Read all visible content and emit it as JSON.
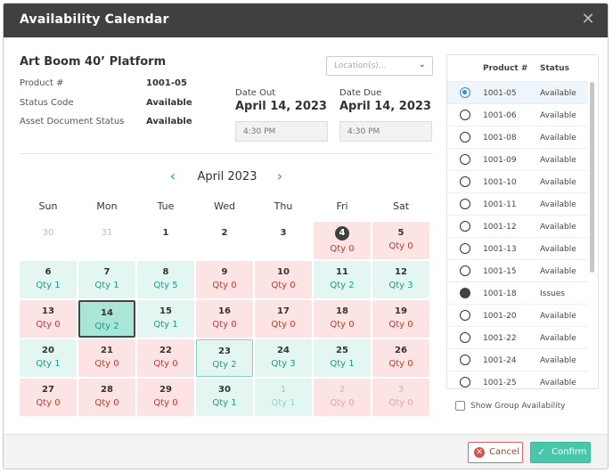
{
  "dialog": {
    "title": "Availability Calendar",
    "close_glyph": "✕"
  },
  "product": {
    "name": "Art Boom 40’ Platform",
    "fields": [
      {
        "label": "Product #",
        "value": "1001-05"
      },
      {
        "label": "Status Code",
        "value": "Available"
      },
      {
        "label": "Asset Document Status",
        "value": "Available"
      }
    ]
  },
  "location": {
    "placeholder": "Location(s)..."
  },
  "date_out": {
    "label": "Date Out",
    "value": "April 14, 2023",
    "time": "4:30 PM"
  },
  "date_due": {
    "label": "Date Due",
    "value": "April 14, 2023",
    "time": "4:30 PM"
  },
  "calendar": {
    "month_label": "April 2023",
    "prev_glyph": "‹",
    "next_glyph": "›",
    "weekdays": [
      "Sun",
      "Mon",
      "Tue",
      "Wed",
      "Thu",
      "Fri",
      "Sat"
    ],
    "weeks": [
      [
        {
          "day": "30",
          "qty": "",
          "state": "none",
          "out": true
        },
        {
          "day": "31",
          "qty": "",
          "state": "none",
          "out": true
        },
        {
          "day": "1",
          "qty": "",
          "state": "none"
        },
        {
          "day": "2",
          "qty": "",
          "state": "none"
        },
        {
          "day": "3",
          "qty": "",
          "state": "none"
        },
        {
          "day": "4",
          "qty": "Qty 0",
          "state": "red",
          "today": true
        },
        {
          "day": "5",
          "qty": "Qty 0",
          "state": "red"
        }
      ],
      [
        {
          "day": "6",
          "qty": "Qty 1",
          "state": "green"
        },
        {
          "day": "7",
          "qty": "Qty 1",
          "state": "green"
        },
        {
          "day": "8",
          "qty": "Qty 5",
          "state": "green"
        },
        {
          "day": "9",
          "qty": "Qty 0",
          "state": "red"
        },
        {
          "day": "10",
          "qty": "Qty 0",
          "state": "red"
        },
        {
          "day": "11",
          "qty": "Qty 2",
          "state": "green"
        },
        {
          "day": "12",
          "qty": "Qty 3",
          "state": "green"
        }
      ],
      [
        {
          "day": "13",
          "qty": "Qty 0",
          "state": "red"
        },
        {
          "day": "14",
          "qty": "Qty 2",
          "state": "green",
          "selected": true
        },
        {
          "day": "15",
          "qty": "Qty 1",
          "state": "green"
        },
        {
          "day": "16",
          "qty": "Qty 0",
          "state": "red"
        },
        {
          "day": "17",
          "qty": "Qty 0",
          "state": "red"
        },
        {
          "day": "18",
          "qty": "Qty 0",
          "state": "red"
        },
        {
          "day": "19",
          "qty": "Qty 0",
          "state": "red"
        }
      ],
      [
        {
          "day": "20",
          "qty": "Qty 1",
          "state": "green"
        },
        {
          "day": "21",
          "qty": "Qty 0",
          "state": "red"
        },
        {
          "day": "22",
          "qty": "Qty 0",
          "state": "red"
        },
        {
          "day": "23",
          "qty": "Qty 2",
          "state": "green",
          "hover": true
        },
        {
          "day": "24",
          "qty": "Qty 3",
          "state": "green"
        },
        {
          "day": "25",
          "qty": "Qty 1",
          "state": "green"
        },
        {
          "day": "26",
          "qty": "Qty 0",
          "state": "red"
        }
      ],
      [
        {
          "day": "27",
          "qty": "Qty 0",
          "state": "red"
        },
        {
          "day": "28",
          "qty": "Qty 0",
          "state": "red"
        },
        {
          "day": "29",
          "qty": "Qty 0",
          "state": "red"
        },
        {
          "day": "30",
          "qty": "Qty 1",
          "state": "green"
        },
        {
          "day": "1",
          "qty": "Qty 1",
          "state": "green",
          "out": true
        },
        {
          "day": "2",
          "qty": "Qty 0",
          "state": "red",
          "out": true
        },
        {
          "day": "3",
          "qty": "Qty 0",
          "state": "red",
          "out": true
        }
      ]
    ]
  },
  "product_list": {
    "headers": {
      "product": "Product #",
      "status": "Status"
    },
    "rows": [
      {
        "product": "1001-05",
        "status": "Available",
        "radio": "selected"
      },
      {
        "product": "1001-06",
        "status": "Available",
        "radio": "off"
      },
      {
        "product": "1001-08",
        "status": "Available",
        "radio": "off"
      },
      {
        "product": "1001-09",
        "status": "Available",
        "radio": "off"
      },
      {
        "product": "1001-10",
        "status": "Available",
        "radio": "off"
      },
      {
        "product": "1001-11",
        "status": "Available",
        "radio": "off"
      },
      {
        "product": "1001-12",
        "status": "Available",
        "radio": "off"
      },
      {
        "product": "1001-13",
        "status": "Available",
        "radio": "off"
      },
      {
        "product": "1001-15",
        "status": "Available",
        "radio": "off"
      },
      {
        "product": "1001-18",
        "status": "Issues",
        "radio": "issue"
      },
      {
        "product": "1001-20",
        "status": "Available",
        "radio": "off"
      },
      {
        "product": "1001-22",
        "status": "Available",
        "radio": "off"
      },
      {
        "product": "1001-24",
        "status": "Available",
        "radio": "off"
      },
      {
        "product": "1001-25",
        "status": "Available",
        "radio": "off"
      }
    ]
  },
  "group_availability": {
    "label": "Show Group Availability",
    "checked": false
  },
  "footer": {
    "cancel_label": "Cancel",
    "confirm_label": "Confirm",
    "cancel_icon": "✕",
    "confirm_icon": "✓"
  },
  "colors": {
    "accent": "#2c8fd6",
    "confirm": "#49c7ad",
    "cancel": "#c0392b",
    "titlebar": "#3e4042"
  }
}
